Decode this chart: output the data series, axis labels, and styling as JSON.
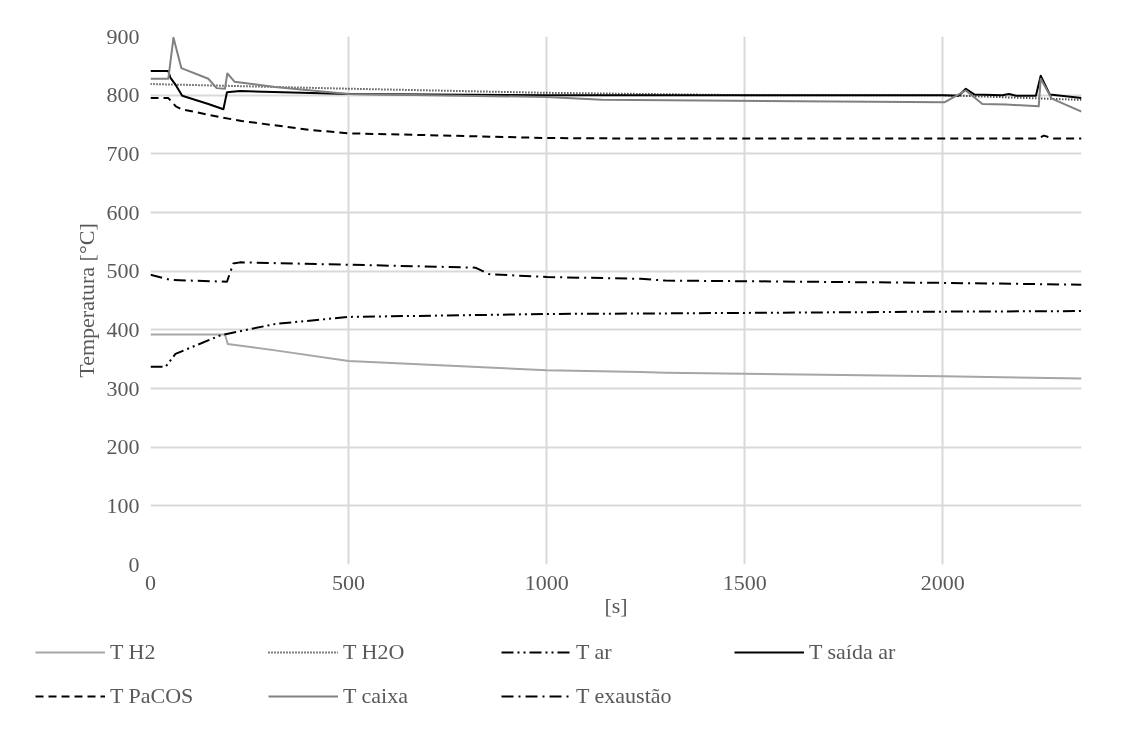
{
  "chart_data": {
    "type": "line",
    "xlabel": "[s]",
    "ylabel": "Temperatura [°C]",
    "xlim": [
      0,
      2350
    ],
    "ylim": [
      0,
      900
    ],
    "xticks": [
      0,
      500,
      1000,
      1500,
      2000
    ],
    "yticks": [
      0,
      100,
      200,
      300,
      400,
      500,
      600,
      700,
      800,
      900
    ],
    "grid": true,
    "legend": "bottom",
    "series": [
      {
        "name": "T H2",
        "color": "#a6a6a6",
        "line_style": "solid",
        "x": [
          0,
          188,
          195,
          315,
          500,
          1000,
          1237,
          1300,
          2000,
          2350
        ],
        "values": [
          392,
          392,
          376,
          365,
          347,
          331,
          328,
          327,
          321,
          317
        ]
      },
      {
        "name": "T H2O",
        "color": "#000000",
        "line_style": "dotted",
        "x": [
          0,
          500,
          1000,
          1500,
          2000,
          2350
        ],
        "values": [
          819,
          811,
          804,
          800,
          800,
          792
        ]
      },
      {
        "name": "T ar",
        "color": "#000000",
        "line_style": "dashdotdot",
        "x": [
          0,
          38,
          63,
          178,
          315,
          500,
          1000,
          1300,
          2000,
          2350
        ],
        "values": [
          337,
          337,
          359,
          391,
          410,
          422,
          427,
          428,
          431,
          432
        ]
      },
      {
        "name": "T saída ar",
        "color": "#000000",
        "line_style": "solid",
        "x": [
          0,
          45,
          50,
          64,
          80,
          146,
          184,
          193,
          226,
          500,
          1000,
          2000,
          2040,
          2058,
          2080,
          2150,
          2167,
          2185,
          2235,
          2247,
          2270,
          2350
        ],
        "values": [
          841,
          841,
          830,
          817,
          799,
          785,
          776,
          805,
          807,
          802,
          800,
          800,
          799,
          811,
          801,
          800,
          802,
          799,
          799,
          833,
          801,
          795
        ]
      },
      {
        "name": "T PaCOS",
        "color": "#000000",
        "line_style": "dashed",
        "x": [
          0,
          45,
          64,
          78,
          180,
          230,
          400,
          500,
          1000,
          1237,
          2000,
          2240,
          2255,
          2280,
          2350
        ],
        "values": [
          795,
          795,
          781,
          776,
          762,
          756,
          741,
          735,
          727,
          726,
          726,
          726,
          731,
          726,
          726
        ]
      },
      {
        "name": "T caixa",
        "color": "#808080",
        "line_style": "solid",
        "x": [
          0,
          45,
          58,
          78,
          146,
          167,
          188,
          194,
          212,
          314,
          500,
          1000,
          1139,
          2005,
          2058,
          2100,
          2160,
          2242,
          2247,
          2275,
          2350
        ],
        "values": [
          828,
          828,
          898,
          846,
          828,
          812,
          811,
          837,
          823,
          814,
          802,
          797,
          792,
          788,
          808,
          785,
          784,
          781,
          828,
          794,
          772
        ]
      },
      {
        "name": "T exaustão",
        "color": "#000000",
        "line_style": "dashdot",
        "x": [
          0,
          50,
          193,
          209,
          226,
          500,
          820,
          854,
          1000,
          1237,
          1300,
          2000,
          2350
        ],
        "values": [
          494,
          485,
          482,
          513,
          515,
          511,
          506,
          495,
          490,
          487,
          484,
          480,
          477
        ]
      }
    ]
  }
}
